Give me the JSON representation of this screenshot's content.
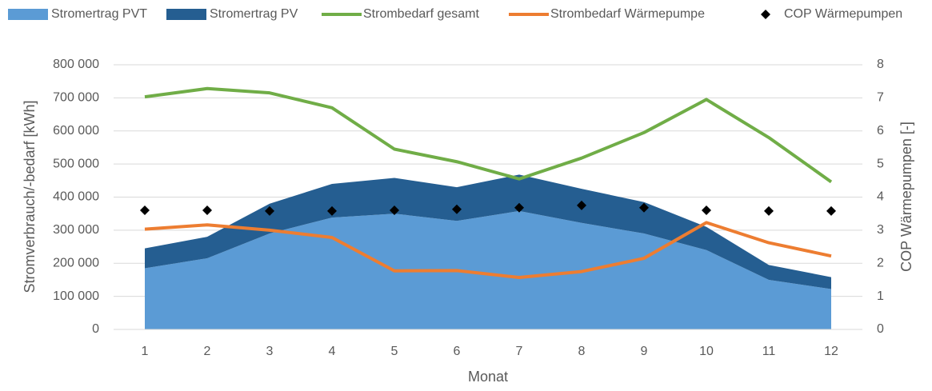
{
  "chart_data": {
    "type": "combo",
    "categories": [
      "1",
      "2",
      "3",
      "4",
      "5",
      "6",
      "7",
      "8",
      "9",
      "10",
      "11",
      "12"
    ],
    "series": [
      {
        "name": "Stromertrag PVT",
        "kind": "area",
        "color": "#5b9bd5",
        "values": [
          185000,
          215000,
          290000,
          338000,
          350000,
          328000,
          358000,
          322000,
          290000,
          240000,
          150000,
          122000
        ]
      },
      {
        "name": "Stromertrag PV",
        "kind": "area",
        "stacked": true,
        "color": "#255e91",
        "values": [
          60000,
          65000,
          90000,
          102000,
          108000,
          102000,
          110000,
          103000,
          95000,
          70000,
          45000,
          36000
        ]
      },
      {
        "name": "Strombedarf gesamt",
        "kind": "line",
        "color": "#70ad47",
        "values": [
          703000,
          728000,
          715000,
          670000,
          545000,
          507000,
          455000,
          518000,
          595000,
          695000,
          580000,
          446000
        ]
      },
      {
        "name": "Strombedarf Wärmepumpe",
        "kind": "line",
        "color": "#ed7d31",
        "values": [
          303000,
          316000,
          300000,
          278000,
          177000,
          178000,
          157000,
          175000,
          215000,
          323000,
          262000,
          222000
        ]
      },
      {
        "name": "COP Wärmepumpen",
        "kind": "marker",
        "axis": "y2",
        "color": "#000000",
        "values": [
          3.6,
          3.6,
          3.58,
          3.58,
          3.6,
          3.63,
          3.68,
          3.75,
          3.68,
          3.6,
          3.58,
          3.58
        ]
      }
    ],
    "xlabel": "Monat",
    "ylabel": "Stromverbrauch/-bedarf [kWh]",
    "y2label": "COP Wärmepumpen [-]",
    "ylim": [
      0,
      800000
    ],
    "yticks": [
      0,
      {
        "value": 100000,
        "label": "100 000"
      },
      {
        "value": 200000,
        "label": "200 000"
      },
      {
        "value": 300000,
        "label": "300 000"
      },
      {
        "value": 400000,
        "label": "400 000"
      },
      {
        "value": 500000,
        "label": "500 000"
      },
      {
        "value": 600000,
        "label": "600 000"
      },
      {
        "value": 700000,
        "label": "700 000"
      },
      {
        "value": 800000,
        "label": "800 000"
      }
    ],
    "y2lim": [
      0,
      8
    ],
    "y2ticks": [
      0,
      1,
      2,
      3,
      4,
      5,
      6,
      7,
      8
    ],
    "grid": true,
    "legend": "top"
  }
}
